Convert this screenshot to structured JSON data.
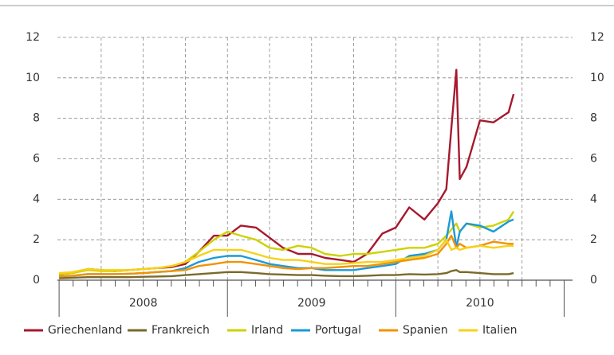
{
  "chart_data": {
    "type": "line",
    "x": [
      2008.0,
      2008.08,
      2008.17,
      2008.25,
      2008.33,
      2008.42,
      2008.5,
      2008.58,
      2008.67,
      2008.75,
      2008.83,
      2008.92,
      2009.0,
      2009.08,
      2009.17,
      2009.25,
      2009.33,
      2009.42,
      2009.5,
      2009.58,
      2009.67,
      2009.75,
      2009.83,
      2009.92,
      2010.0,
      2010.08,
      2010.17,
      2010.25,
      2010.3,
      2010.33,
      2010.36,
      2010.38,
      2010.42,
      2010.5,
      2010.58,
      2010.67,
      2010.7
    ],
    "series": [
      {
        "name": "Griechenland",
        "color": "#a6192e",
        "values": [
          0.3,
          0.35,
          0.55,
          0.5,
          0.45,
          0.5,
          0.55,
          0.6,
          0.65,
          0.8,
          1.4,
          2.2,
          2.2,
          2.7,
          2.6,
          2.1,
          1.6,
          1.3,
          1.3,
          1.1,
          1.0,
          0.9,
          1.3,
          2.3,
          2.6,
          3.6,
          3.0,
          3.8,
          4.5,
          7.5,
          10.4,
          5.0,
          5.6,
          7.9,
          7.8,
          8.3,
          9.2
        ]
      },
      {
        "name": "Frankreich",
        "color": "#7a6a2a",
        "values": [
          0.1,
          0.12,
          0.15,
          0.15,
          0.15,
          0.15,
          0.17,
          0.18,
          0.2,
          0.25,
          0.3,
          0.35,
          0.4,
          0.4,
          0.35,
          0.3,
          0.28,
          0.25,
          0.25,
          0.22,
          0.2,
          0.2,
          0.22,
          0.25,
          0.25,
          0.3,
          0.28,
          0.3,
          0.35,
          0.45,
          0.5,
          0.4,
          0.4,
          0.35,
          0.3,
          0.3,
          0.35
        ]
      },
      {
        "name": "Irland",
        "color": "#cfd200",
        "values": [
          0.3,
          0.35,
          0.5,
          0.45,
          0.45,
          0.5,
          0.55,
          0.6,
          0.7,
          0.9,
          1.4,
          2.0,
          2.4,
          2.2,
          2.0,
          1.6,
          1.5,
          1.7,
          1.6,
          1.3,
          1.2,
          1.3,
          1.3,
          1.4,
          1.5,
          1.6,
          1.6,
          1.8,
          2.2,
          2.5,
          2.8,
          2.4,
          2.8,
          2.6,
          2.7,
          3.0,
          3.4
        ]
      },
      {
        "name": "Portugal",
        "color": "#1b9ad6",
        "values": [
          0.2,
          0.22,
          0.3,
          0.3,
          0.3,
          0.32,
          0.35,
          0.4,
          0.45,
          0.6,
          0.9,
          1.1,
          1.2,
          1.2,
          1.0,
          0.8,
          0.7,
          0.6,
          0.6,
          0.5,
          0.5,
          0.5,
          0.6,
          0.7,
          0.8,
          1.2,
          1.3,
          1.5,
          2.0,
          3.4,
          1.6,
          2.4,
          2.8,
          2.7,
          2.4,
          2.9,
          3.0
        ]
      },
      {
        "name": "Spanien",
        "color": "#f39200",
        "values": [
          0.2,
          0.22,
          0.3,
          0.3,
          0.3,
          0.32,
          0.35,
          0.4,
          0.45,
          0.5,
          0.7,
          0.8,
          0.9,
          0.9,
          0.8,
          0.7,
          0.6,
          0.55,
          0.6,
          0.6,
          0.65,
          0.7,
          0.7,
          0.8,
          0.9,
          1.0,
          1.1,
          1.3,
          1.8,
          2.2,
          1.6,
          1.8,
          1.6,
          1.7,
          1.9,
          1.8,
          1.8
        ]
      },
      {
        "name": "Italien",
        "color": "#f7d117",
        "values": [
          0.35,
          0.4,
          0.55,
          0.5,
          0.5,
          0.5,
          0.55,
          0.6,
          0.7,
          0.9,
          1.2,
          1.5,
          1.5,
          1.5,
          1.3,
          1.1,
          1.0,
          1.0,
          0.9,
          0.8,
          0.8,
          0.85,
          0.9,
          0.9,
          1.0,
          1.1,
          1.2,
          1.5,
          2.0,
          1.5,
          1.6,
          1.5,
          1.6,
          1.7,
          1.6,
          1.7,
          1.7
        ]
      }
    ],
    "xlim": [
      2007.99,
      2011.05
    ],
    "xticks": [
      2008,
      2009,
      2010
    ],
    "ylim": [
      0,
      12
    ],
    "yticks": [
      0,
      2,
      4,
      6,
      8,
      10,
      12
    ],
    "grid": true
  }
}
